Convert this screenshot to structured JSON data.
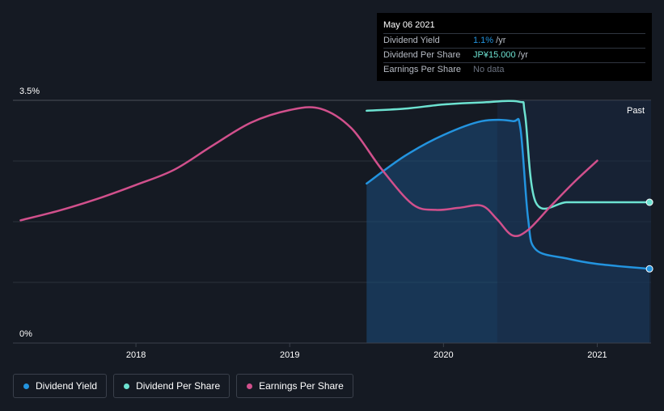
{
  "tooltip": {
    "date": "May 06 2021",
    "rows": [
      {
        "label": "Dividend Yield",
        "value": "1.1%",
        "unit": " /yr",
        "color": "#2394df"
      },
      {
        "label": "Dividend Per Share",
        "value": "JP¥15.000",
        "unit": " /yr",
        "color": "#6de2d1"
      },
      {
        "label": "Earnings Per Share",
        "value": "No data",
        "unit": "",
        "color": "#6b7280"
      }
    ]
  },
  "past_label": "Past",
  "legend": [
    {
      "label": "Dividend Yield",
      "color": "#2394df"
    },
    {
      "label": "Dividend Per Share",
      "color": "#6de2d1"
    },
    {
      "label": "Earnings Per Share",
      "color": "#d1508c"
    }
  ],
  "chart_data": {
    "type": "line",
    "y_ticks": [
      "3.5%",
      "0%"
    ],
    "x_ticks": [
      "2018",
      "2019",
      "2020",
      "2021"
    ],
    "xlim": [
      2017.2,
      2021.35
    ],
    "ylim": [
      0,
      3.5
    ],
    "grid": true,
    "series": [
      {
        "name": "Dividend Yield",
        "color": "#2394df",
        "area": true,
        "points": [
          [
            2019.5,
            2.3
          ],
          [
            2019.75,
            2.7
          ],
          [
            2020.0,
            3.0
          ],
          [
            2020.25,
            3.2
          ],
          [
            2020.45,
            3.2
          ],
          [
            2020.5,
            3.1
          ],
          [
            2020.55,
            1.8
          ],
          [
            2020.6,
            1.35
          ],
          [
            2020.8,
            1.22
          ],
          [
            2021.0,
            1.14
          ],
          [
            2021.34,
            1.07
          ]
        ],
        "end_marker": true
      },
      {
        "name": "Dividend Per Share",
        "color": "#6de2d1",
        "area": false,
        "points": [
          [
            2019.5,
            3.35
          ],
          [
            2019.75,
            3.38
          ],
          [
            2020.0,
            3.44
          ],
          [
            2020.25,
            3.47
          ],
          [
            2020.49,
            3.48
          ],
          [
            2020.53,
            3.3
          ],
          [
            2020.6,
            2.03
          ],
          [
            2020.8,
            2.03
          ],
          [
            2021.0,
            2.03
          ],
          [
            2021.34,
            2.03
          ]
        ],
        "end_marker": true
      },
      {
        "name": "Earnings Per Share",
        "color": "#d1508c",
        "area": false,
        "points": [
          [
            2017.25,
            1.77
          ],
          [
            2017.5,
            1.91
          ],
          [
            2017.75,
            2.08
          ],
          [
            2018.0,
            2.28
          ],
          [
            2018.25,
            2.5
          ],
          [
            2018.5,
            2.85
          ],
          [
            2018.75,
            3.18
          ],
          [
            2019.0,
            3.36
          ],
          [
            2019.2,
            3.38
          ],
          [
            2019.4,
            3.1
          ],
          [
            2019.6,
            2.5
          ],
          [
            2019.8,
            2.0
          ],
          [
            2019.95,
            1.92
          ],
          [
            2020.1,
            1.95
          ],
          [
            2020.25,
            1.98
          ],
          [
            2020.35,
            1.78
          ],
          [
            2020.45,
            1.55
          ],
          [
            2020.55,
            1.63
          ],
          [
            2020.7,
            1.98
          ],
          [
            2020.85,
            2.32
          ],
          [
            2021.0,
            2.63
          ]
        ],
        "end_marker": false
      }
    ]
  }
}
